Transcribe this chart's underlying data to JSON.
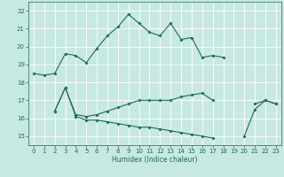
{
  "xlabel": "Humidex (Indice chaleur)",
  "x": [
    0,
    1,
    2,
    3,
    4,
    5,
    6,
    7,
    8,
    9,
    10,
    11,
    12,
    13,
    14,
    15,
    16,
    17,
    18,
    19,
    20,
    21,
    22,
    23
  ],
  "line1": [
    18.5,
    18.4,
    18.5,
    19.6,
    19.5,
    19.1,
    19.9,
    20.6,
    21.1,
    21.8,
    21.3,
    20.8,
    20.6,
    21.3,
    20.4,
    20.5,
    19.4,
    19.5,
    19.4,
    null,
    15.0,
    16.5,
    17.0,
    16.8
  ],
  "line2": [
    null,
    null,
    16.4,
    17.7,
    16.2,
    16.1,
    16.2,
    16.4,
    16.6,
    16.8,
    17.0,
    17.0,
    17.0,
    17.0,
    17.2,
    17.3,
    17.4,
    17.0,
    null,
    null,
    null,
    16.8,
    17.0,
    16.8
  ],
  "line3": [
    null,
    null,
    16.4,
    17.7,
    16.1,
    15.9,
    15.9,
    15.8,
    15.7,
    15.6,
    15.5,
    15.5,
    15.4,
    15.3,
    15.2,
    15.1,
    15.0,
    14.9,
    null,
    null,
    null,
    null,
    null,
    null
  ],
  "ylim": [
    14.5,
    22.5
  ],
  "xlim": [
    -0.5,
    23.5
  ],
  "yticks": [
    15,
    16,
    17,
    18,
    19,
    20,
    21,
    22
  ],
  "xticks": [
    0,
    1,
    2,
    3,
    4,
    5,
    6,
    7,
    8,
    9,
    10,
    11,
    12,
    13,
    14,
    15,
    16,
    17,
    18,
    19,
    20,
    21,
    22,
    23
  ],
  "line_color": "#1e6b5e",
  "bg_color": "#c8e8e3",
  "grid_color": "#ffffff",
  "marker": "D",
  "marker_size": 2,
  "linewidth": 0.8
}
